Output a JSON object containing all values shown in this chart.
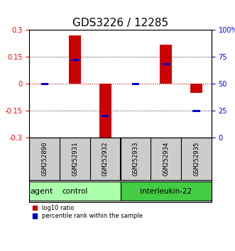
{
  "title": "GDS3226 / 12285",
  "samples": [
    "GSM252890",
    "GSM252931",
    "GSM252932",
    "GSM252933",
    "GSM252934",
    "GSM252935"
  ],
  "log10_ratio": [
    0.0,
    0.27,
    -0.3,
    0.0,
    0.22,
    -0.05
  ],
  "percentile_rank": [
    50,
    72,
    20,
    50,
    68,
    25
  ],
  "ylim_left": [
    -0.3,
    0.3
  ],
  "yticks_left": [
    -0.3,
    -0.15,
    0,
    0.15,
    0.3
  ],
  "yticks_right": [
    0,
    25,
    50,
    75,
    100
  ],
  "groups": [
    {
      "label": "control",
      "start": 0,
      "end": 3,
      "color": "#aaffaa"
    },
    {
      "label": "interleukin-22",
      "start": 3,
      "end": 6,
      "color": "#44cc44"
    }
  ],
  "bar_color": "#cc0000",
  "percentile_color": "#0000cc",
  "bar_width": 0.4,
  "grid_color": "#000000",
  "zero_line_color": "#cc0000",
  "background_color": "#ffffff",
  "title_fontsize": 11,
  "tick_fontsize": 7,
  "label_fontsize": 8
}
